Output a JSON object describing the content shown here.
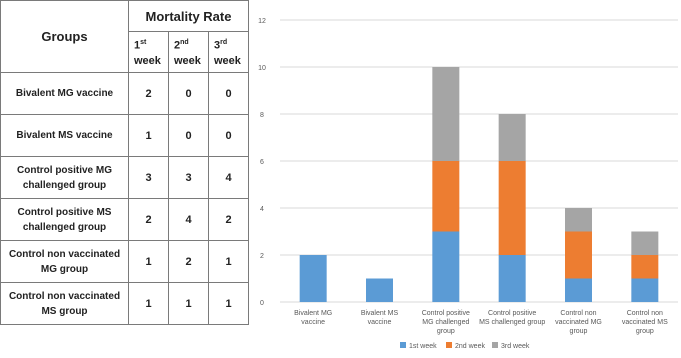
{
  "table": {
    "header_groups": "Groups",
    "header_mortality": "Mortality Rate",
    "weeks": [
      {
        "num": "1",
        "sup": "st",
        "word": "week"
      },
      {
        "num": "2",
        "sup": "nd",
        "word": "week"
      },
      {
        "num": "3",
        "sup": "rd",
        "word": "week"
      }
    ],
    "rows": [
      {
        "group": "Bivalent MG vaccine",
        "v1": "2",
        "v2": "0",
        "v3": "0"
      },
      {
        "group": "Bivalent MS vaccine",
        "v1": "1",
        "v2": "0",
        "v3": "0"
      },
      {
        "group": "Control positive MG challenged group",
        "v1": "3",
        "v2": "3",
        "v3": "4"
      },
      {
        "group": "Control positive MS challenged group",
        "v1": "2",
        "v2": "4",
        "v3": "2"
      },
      {
        "group": "Control non vaccinated MG group",
        "v1": "1",
        "v2": "2",
        "v3": "1"
      },
      {
        "group": "Control non vaccinated MS group",
        "v1": "1",
        "v2": "1",
        "v3": "1"
      }
    ]
  },
  "chart_data": {
    "type": "bar",
    "stacked": true,
    "categories": [
      [
        "Bivalent MG",
        "vaccine"
      ],
      [
        "Bivalent MS",
        "vaccine"
      ],
      [
        "Control positive",
        "MG challenged",
        "group"
      ],
      [
        "Control positive",
        "MS challenged group"
      ],
      [
        "Control non",
        "vaccinated MG",
        "group"
      ],
      [
        "Control non",
        "vaccinated MS",
        "group"
      ]
    ],
    "series": [
      {
        "name": "1st week",
        "color": "#5b9bd5",
        "values": [
          2,
          1,
          3,
          2,
          1,
          1
        ]
      },
      {
        "name": "2nd week",
        "color": "#ed7d31",
        "values": [
          0,
          0,
          3,
          4,
          2,
          1
        ]
      },
      {
        "name": "3rd week",
        "color": "#a5a5a5",
        "values": [
          0,
          0,
          4,
          2,
          1,
          1
        ]
      }
    ],
    "ylim": [
      0,
      12
    ],
    "yticks": [
      "0",
      "2",
      "4",
      "6",
      "8",
      "10",
      "12"
    ],
    "grid": true,
    "legend": "bottom"
  }
}
